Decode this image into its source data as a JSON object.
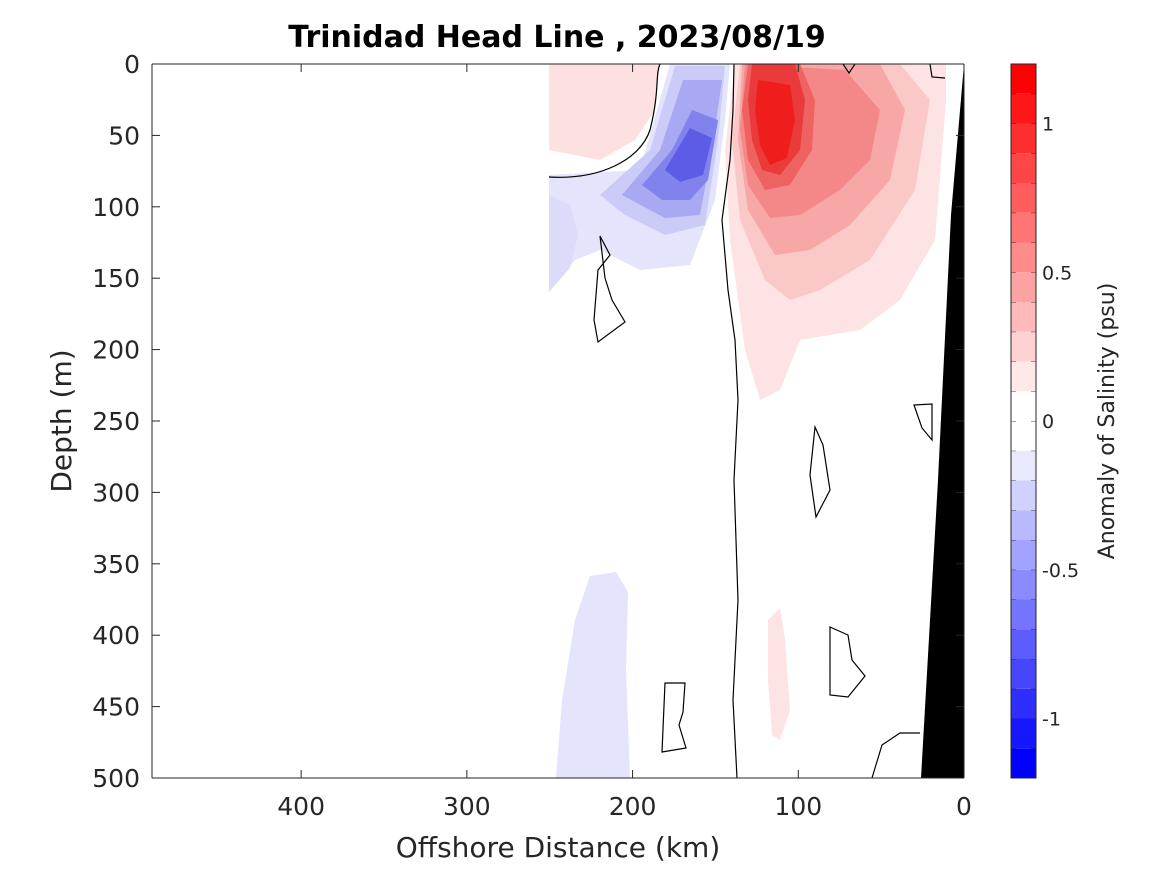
{
  "chart_data": {
    "type": "heatmap",
    "title": "Trinidad Head Line , 2023/08/19",
    "xlabel": "Offshore Distance (km)",
    "ylabel": "Depth (m)",
    "xlim": [
      490,
      0
    ],
    "ylim": [
      0,
      500
    ],
    "x_reversed": true,
    "y_reversed": true,
    "xticks": [
      "400",
      "300",
      "200",
      "100",
      "0"
    ],
    "xtick_values": [
      400,
      300,
      200,
      100,
      0
    ],
    "yticks": [
      "0",
      "50",
      "100",
      "150",
      "200",
      "250",
      "300",
      "350",
      "400",
      "450",
      "500"
    ],
    "ytick_values": [
      0,
      50,
      100,
      150,
      200,
      250,
      300,
      350,
      400,
      450,
      500
    ],
    "colorbar": {
      "label": "Anomaly of Salinity (psu)",
      "range": [
        -1.2,
        1.2
      ],
      "step": 0.1,
      "ticks": [
        "-1",
        "-0.5",
        "0",
        "0.5",
        "1"
      ],
      "tick_values": [
        -1,
        -0.5,
        0,
        0.5,
        1
      ],
      "negative_color": "#0000ff",
      "positive_color": "#ff0000"
    },
    "data_coverage_km": [
      0,
      250
    ],
    "bathymetry_color": "#000000",
    "zero_contour_color": "#000000",
    "anomaly_features": [
      {
        "name": "Negative core",
        "x_km": 160,
        "depth_m": 75,
        "value": -0.6
      },
      {
        "name": "Positive core",
        "x_km": 115,
        "depth_m": 65,
        "value": 1.2
      },
      {
        "name": "Positive lobe",
        "x_km": 55,
        "depth_m": 60,
        "value": 0.5
      },
      {
        "name": "Nearshore positive",
        "x_km": 20,
        "depth_m": 130,
        "value": 0.2
      },
      {
        "name": "Offshore negative",
        "x_km": 240,
        "depth_m": 110,
        "value": -0.2
      },
      {
        "name": "Deep negative",
        "x_km": 225,
        "depth_m": 430,
        "value": -0.1
      },
      {
        "name": "Deep positive",
        "x_km": 115,
        "depth_m": 420,
        "value": 0.1
      }
    ]
  }
}
